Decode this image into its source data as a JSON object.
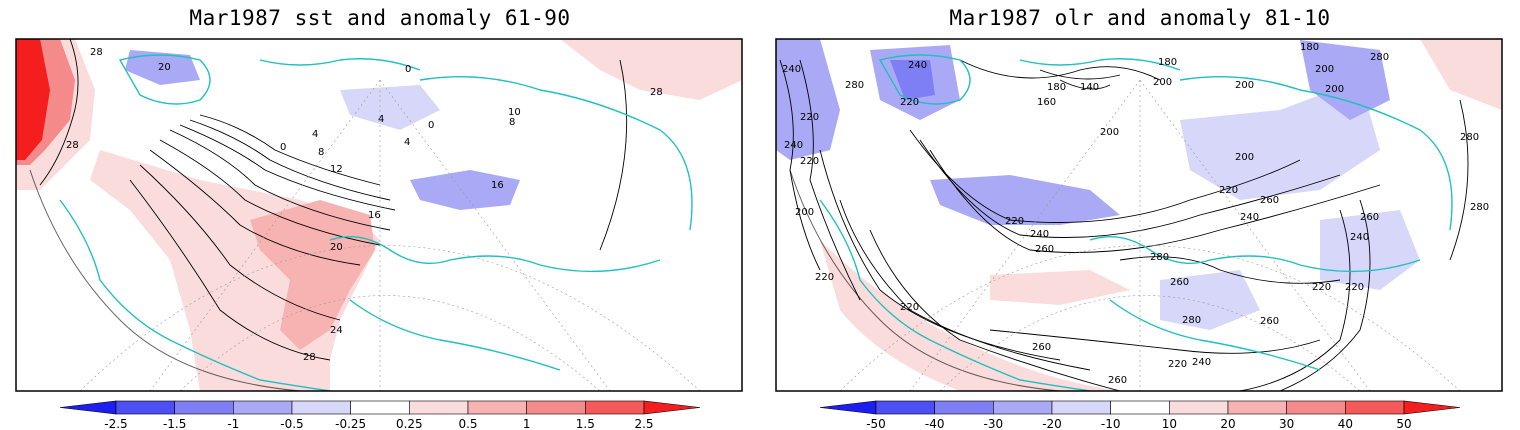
{
  "colors": {
    "coast": "#20c0c0",
    "contour": "#000000",
    "frame": "#000000",
    "neg": [
      "#1e1ef0",
      "#4e4ef5",
      "#7f7ff5",
      "#a9a9f5",
      "#d7d7fa"
    ],
    "pos": [
      "#fadcdc",
      "#f7b2b2",
      "#f58a8a",
      "#f55a5a",
      "#f51e1e"
    ]
  },
  "left_panel": {
    "title": "Mar1987 sst and anomaly 61-90",
    "colorbar_labels": [
      "-2.5",
      "-1.5",
      "-1",
      "-0.5",
      "-0.25",
      "0.25",
      "0.5",
      "1",
      "1.5",
      "2.5"
    ],
    "contour_labels": [
      "28",
      "20",
      "0",
      "4",
      "8",
      "12",
      "16",
      "20",
      "24",
      "28",
      "28",
      "28",
      "0",
      "4",
      "0",
      "8",
      "4",
      "10",
      "16"
    ]
  },
  "right_panel": {
    "title": "Mar1987 olr and anomaly 81-10",
    "colorbar_labels": [
      "-50",
      "-40",
      "-30",
      "-20",
      "-10",
      "10",
      "20",
      "30",
      "40",
      "50"
    ],
    "contour_labels": [
      "240",
      "280",
      "240",
      "220",
      "220",
      "240",
      "220",
      "200",
      "180",
      "160",
      "140",
      "180",
      "200",
      "200",
      "180",
      "200",
      "280",
      "200",
      "200",
      "220",
      "220",
      "240",
      "260",
      "280",
      "260",
      "240",
      "220",
      "220",
      "200",
      "220",
      "260",
      "280",
      "260",
      "280",
      "260",
      "240",
      "260",
      "280",
      "220",
      "220",
      "260",
      "240"
    ]
  }
}
